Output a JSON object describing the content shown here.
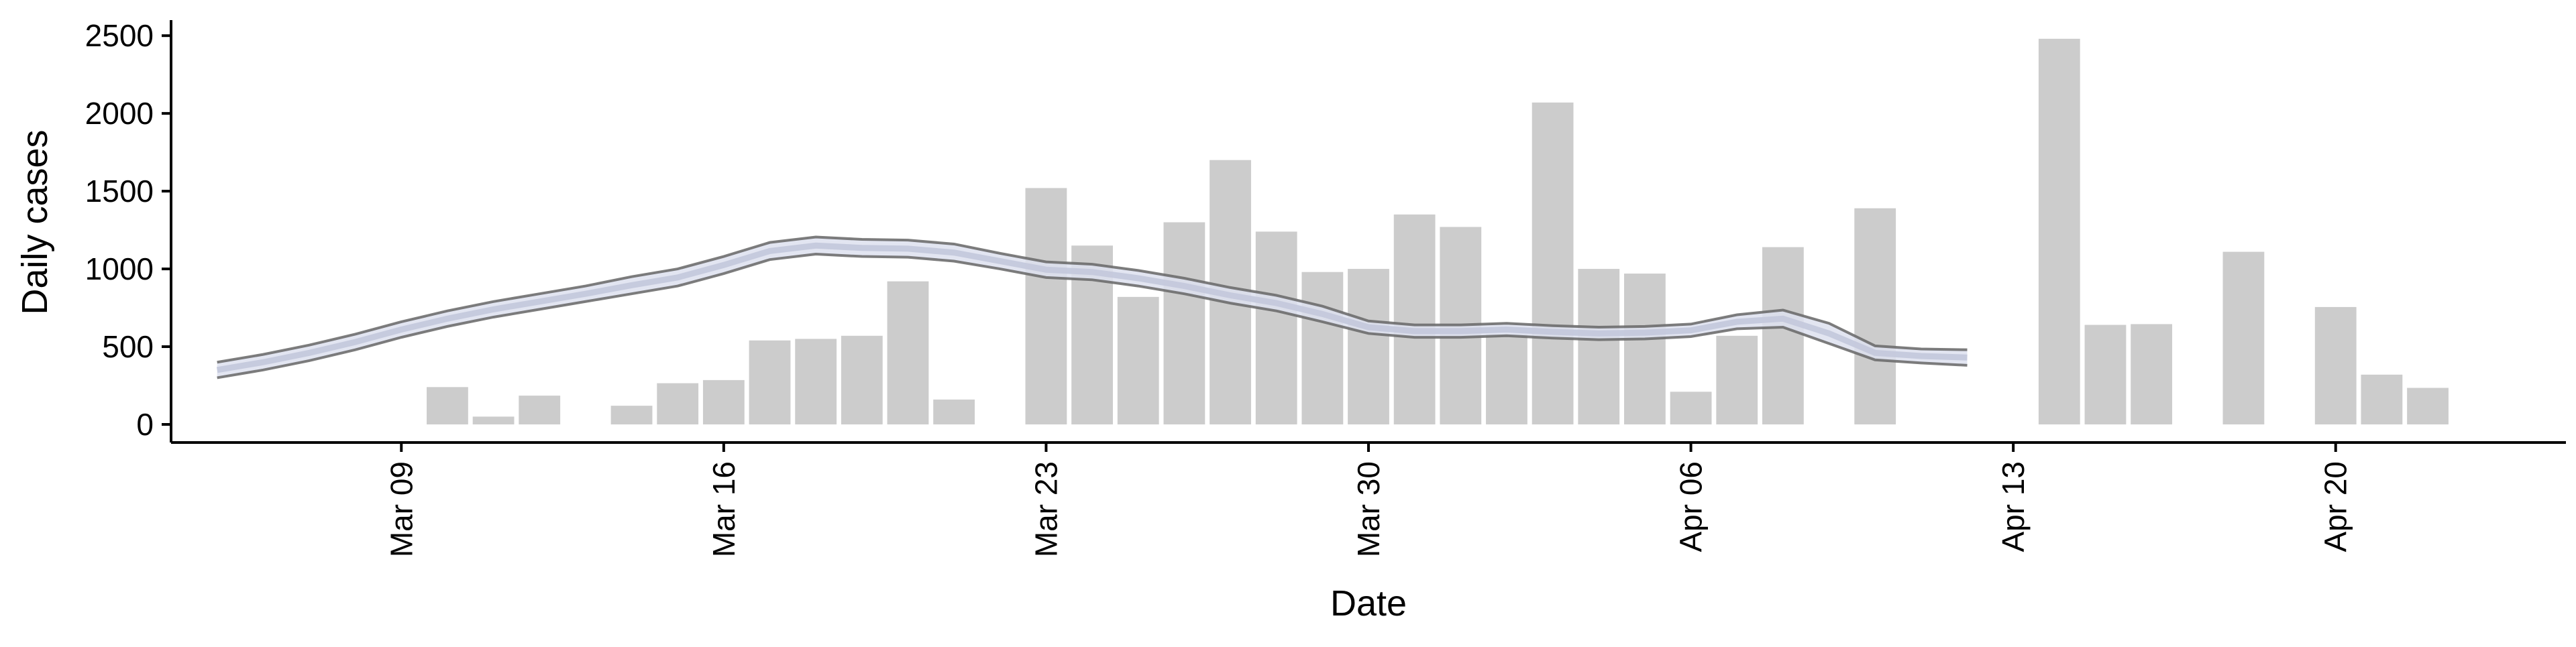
{
  "chart_data": {
    "type": "bar",
    "xlabel": "Date",
    "ylabel": "Daily cases",
    "x_range": [
      "2020-03-04",
      "2020-04-25"
    ],
    "ylim": [
      0,
      2500
    ],
    "x_ticks": [
      {
        "date": "2020-03-09",
        "label": "Mar 09"
      },
      {
        "date": "2020-03-16",
        "label": "Mar 16"
      },
      {
        "date": "2020-03-23",
        "label": "Mar 23"
      },
      {
        "date": "2020-03-30",
        "label": "Mar 30"
      },
      {
        "date": "2020-04-06",
        "label": "Apr 06"
      },
      {
        "date": "2020-04-13",
        "label": "Apr 13"
      },
      {
        "date": "2020-04-20",
        "label": "Apr 20"
      }
    ],
    "y_ticks": [
      {
        "value": 0,
        "label": "0"
      },
      {
        "value": 500,
        "label": "500"
      },
      {
        "value": 1000,
        "label": "1000"
      },
      {
        "value": 1500,
        "label": "1500"
      },
      {
        "value": 2000,
        "label": "2000"
      },
      {
        "value": 2500,
        "label": "2500"
      }
    ],
    "grid": false,
    "series": [
      {
        "kind": "bar",
        "color": "#cccccc",
        "points": [
          {
            "date": "2020-03-10",
            "value": 240
          },
          {
            "date": "2020-03-11",
            "value": 50
          },
          {
            "date": "2020-03-12",
            "value": 185
          },
          {
            "date": "2020-03-14",
            "value": 120
          },
          {
            "date": "2020-03-15",
            "value": 265
          },
          {
            "date": "2020-03-16",
            "value": 285
          },
          {
            "date": "2020-03-17",
            "value": 540
          },
          {
            "date": "2020-03-18",
            "value": 550
          },
          {
            "date": "2020-03-19",
            "value": 570
          },
          {
            "date": "2020-03-20",
            "value": 920
          },
          {
            "date": "2020-03-21",
            "value": 160
          },
          {
            "date": "2020-03-23",
            "value": 1520
          },
          {
            "date": "2020-03-24",
            "value": 1150
          },
          {
            "date": "2020-03-25",
            "value": 820
          },
          {
            "date": "2020-03-26",
            "value": 1300
          },
          {
            "date": "2020-03-27",
            "value": 1700
          },
          {
            "date": "2020-03-28",
            "value": 1240
          },
          {
            "date": "2020-03-29",
            "value": 980
          },
          {
            "date": "2020-03-30",
            "value": 1000
          },
          {
            "date": "2020-03-31",
            "value": 1350
          },
          {
            "date": "2020-04-01",
            "value": 1270
          },
          {
            "date": "2020-04-02",
            "value": 580
          },
          {
            "date": "2020-04-03",
            "value": 2070
          },
          {
            "date": "2020-04-04",
            "value": 1000
          },
          {
            "date": "2020-04-05",
            "value": 970
          },
          {
            "date": "2020-04-06",
            "value": 210
          },
          {
            "date": "2020-04-07",
            "value": 570
          },
          {
            "date": "2020-04-08",
            "value": 1140
          },
          {
            "date": "2020-04-10",
            "value": 1390
          },
          {
            "date": "2020-04-14",
            "value": 2480
          },
          {
            "date": "2020-04-15",
            "value": 640
          },
          {
            "date": "2020-04-16",
            "value": 645
          },
          {
            "date": "2020-04-18",
            "value": 1110
          },
          {
            "date": "2020-04-20",
            "value": 755
          },
          {
            "date": "2020-04-21",
            "value": 320
          },
          {
            "date": "2020-04-22",
            "value": 235
          }
        ]
      },
      {
        "kind": "band",
        "fill_color": "#dde1ef",
        "median_color": "#c3c8dc",
        "edge_color": "#666666",
        "points": [
          {
            "date": "2020-03-05",
            "lower": 300,
            "median": 350,
            "upper": 400
          },
          {
            "date": "2020-03-06",
            "lower": 350,
            "median": 400,
            "upper": 450
          },
          {
            "date": "2020-03-07",
            "lower": 410,
            "median": 460,
            "upper": 510
          },
          {
            "date": "2020-03-08",
            "lower": 480,
            "median": 530,
            "upper": 580
          },
          {
            "date": "2020-03-09",
            "lower": 560,
            "median": 610,
            "upper": 660
          },
          {
            "date": "2020-03-10",
            "lower": 630,
            "median": 680,
            "upper": 730
          },
          {
            "date": "2020-03-11",
            "lower": 690,
            "median": 740,
            "upper": 790
          },
          {
            "date": "2020-03-12",
            "lower": 740,
            "median": 790,
            "upper": 840
          },
          {
            "date": "2020-03-13",
            "lower": 790,
            "median": 840,
            "upper": 890
          },
          {
            "date": "2020-03-14",
            "lower": 840,
            "median": 895,
            "upper": 950
          },
          {
            "date": "2020-03-15",
            "lower": 890,
            "median": 945,
            "upper": 1000
          },
          {
            "date": "2020-03-16",
            "lower": 970,
            "median": 1025,
            "upper": 1080
          },
          {
            "date": "2020-03-17",
            "lower": 1060,
            "median": 1115,
            "upper": 1170
          },
          {
            "date": "2020-03-18",
            "lower": 1095,
            "median": 1150,
            "upper": 1205
          },
          {
            "date": "2020-03-19",
            "lower": 1080,
            "median": 1135,
            "upper": 1190
          },
          {
            "date": "2020-03-20",
            "lower": 1075,
            "median": 1130,
            "upper": 1185
          },
          {
            "date": "2020-03-21",
            "lower": 1050,
            "median": 1105,
            "upper": 1160
          },
          {
            "date": "2020-03-22",
            "lower": 1000,
            "median": 1050,
            "upper": 1100
          },
          {
            "date": "2020-03-23",
            "lower": 945,
            "median": 995,
            "upper": 1045
          },
          {
            "date": "2020-03-24",
            "lower": 930,
            "median": 980,
            "upper": 1030
          },
          {
            "date": "2020-03-25",
            "lower": 890,
            "median": 940,
            "upper": 990
          },
          {
            "date": "2020-03-26",
            "lower": 840,
            "median": 890,
            "upper": 940
          },
          {
            "date": "2020-03-27",
            "lower": 780,
            "median": 830,
            "upper": 880
          },
          {
            "date": "2020-03-28",
            "lower": 730,
            "median": 780,
            "upper": 830
          },
          {
            "date": "2020-03-29",
            "lower": 660,
            "median": 710,
            "upper": 760
          },
          {
            "date": "2020-03-30",
            "lower": 585,
            "median": 625,
            "upper": 665
          },
          {
            "date": "2020-03-31",
            "lower": 560,
            "median": 600,
            "upper": 640
          },
          {
            "date": "2020-04-01",
            "lower": 560,
            "median": 600,
            "upper": 640
          },
          {
            "date": "2020-04-02",
            "lower": 570,
            "median": 610,
            "upper": 650
          },
          {
            "date": "2020-04-03",
            "lower": 555,
            "median": 595,
            "upper": 635
          },
          {
            "date": "2020-04-04",
            "lower": 545,
            "median": 585,
            "upper": 625
          },
          {
            "date": "2020-04-05",
            "lower": 550,
            "median": 590,
            "upper": 630
          },
          {
            "date": "2020-04-06",
            "lower": 565,
            "median": 605,
            "upper": 645
          },
          {
            "date": "2020-04-07",
            "lower": 615,
            "median": 660,
            "upper": 705
          },
          {
            "date": "2020-04-08",
            "lower": 625,
            "median": 680,
            "upper": 735
          },
          {
            "date": "2020-04-09",
            "lower": 520,
            "median": 585,
            "upper": 650
          },
          {
            "date": "2020-04-10",
            "lower": 415,
            "median": 460,
            "upper": 505
          },
          {
            "date": "2020-04-11",
            "lower": 395,
            "median": 440,
            "upper": 485
          },
          {
            "date": "2020-04-12",
            "lower": 380,
            "median": 430,
            "upper": 480
          }
        ]
      }
    ]
  }
}
